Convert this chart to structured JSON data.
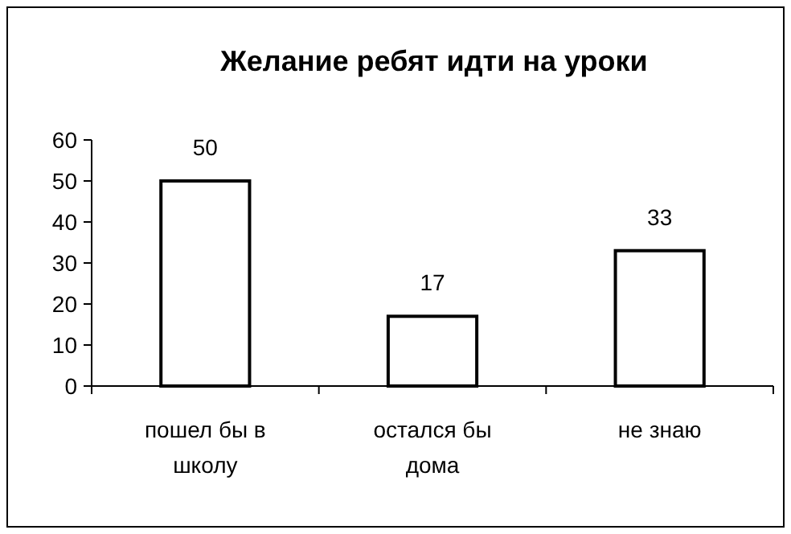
{
  "chart_data": {
    "type": "bar",
    "title": "Желание ребят идти на уроки",
    "categories": [
      "пошел бы в школу",
      "остался бы дома",
      "не знаю"
    ],
    "values": [
      50,
      17,
      33
    ],
    "color": "#ffffff",
    "ylim": [
      0,
      60
    ],
    "yticks": [
      0,
      10,
      20,
      30,
      40,
      50,
      60
    ],
    "grid": false,
    "data_labels": true
  }
}
